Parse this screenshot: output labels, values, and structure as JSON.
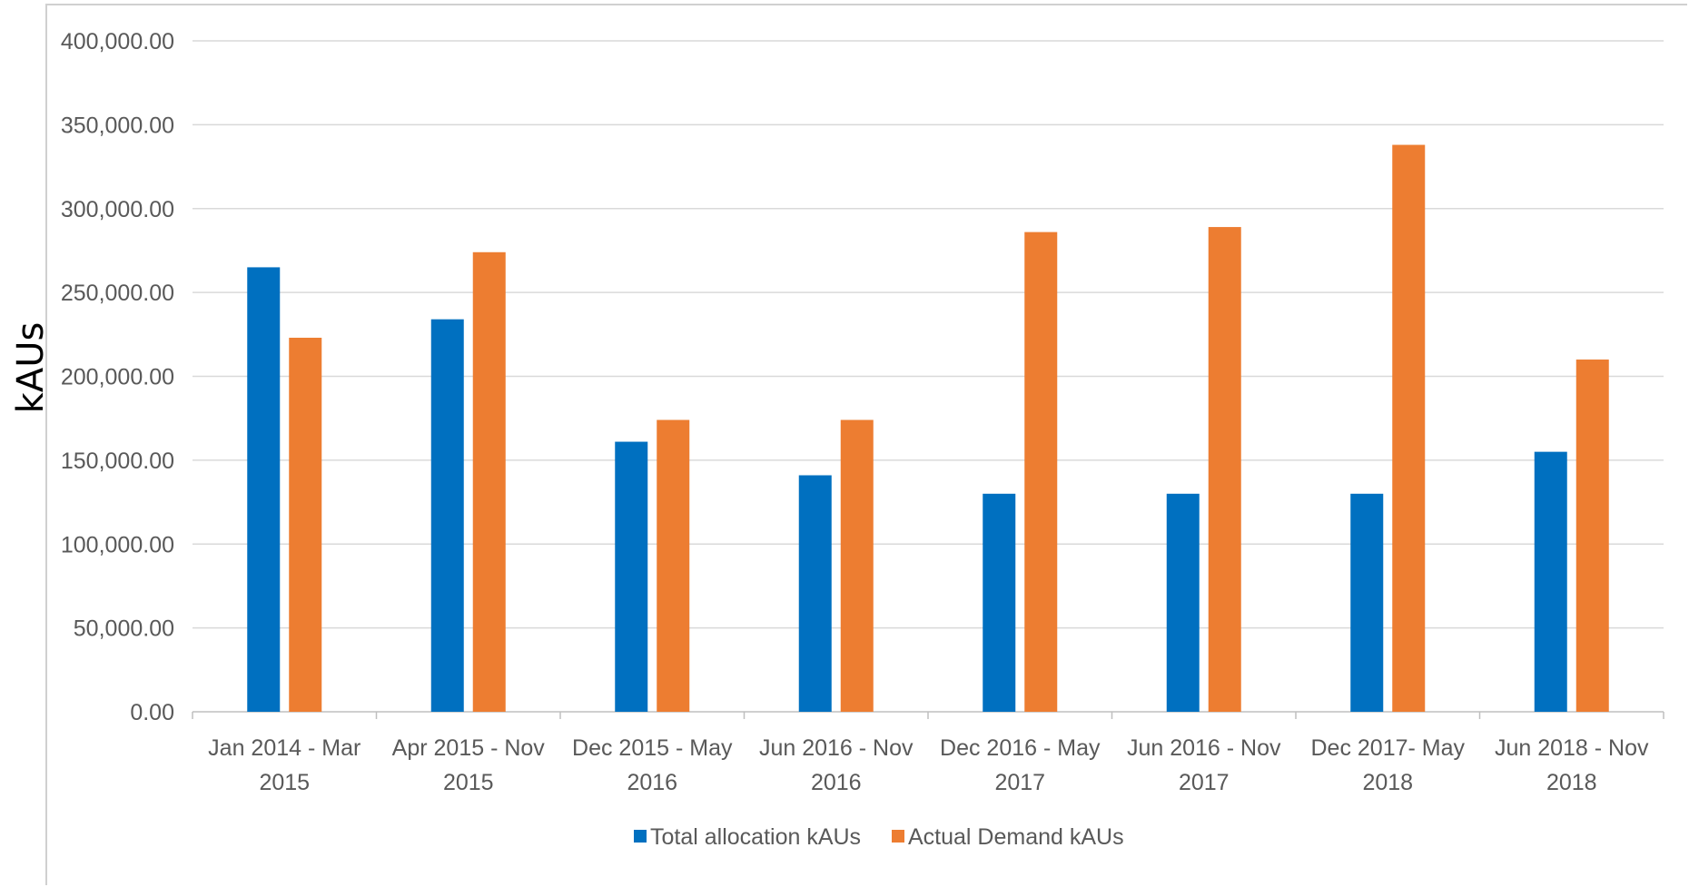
{
  "chart_data": {
    "type": "bar",
    "title": "",
    "xlabel": "",
    "ylabel": "kAUs",
    "ylim": [
      0,
      400000
    ],
    "y_ticks": [
      "0.00",
      "50,000.00",
      "100,000.00",
      "150,000.00",
      "200,000.00",
      "250,000.00",
      "300,000.00",
      "350,000.00",
      "400,000.00"
    ],
    "y_tick_values": [
      0,
      50000,
      100000,
      150000,
      200000,
      250000,
      300000,
      350000,
      400000
    ],
    "grid": true,
    "legend_position": "bottom",
    "categories": [
      [
        "Jan 2014 - Mar",
        "2015"
      ],
      [
        "Apr 2015 - Nov",
        "2015"
      ],
      [
        "Dec 2015 - May",
        "2016"
      ],
      [
        "Jun 2016 - Nov",
        "2016"
      ],
      [
        "Dec 2016 - May",
        "2017"
      ],
      [
        "Jun 2016 - Nov",
        "2017"
      ],
      [
        "Dec 2017- May",
        "2018"
      ],
      [
        "Jun 2018 - Nov",
        "2018"
      ]
    ],
    "series": [
      {
        "name": "Total allocation kAUs",
        "color": "#0070C0",
        "values": [
          265000,
          234000,
          161000,
          141000,
          130000,
          130000,
          130000,
          155000
        ]
      },
      {
        "name": "Actual Demand kAUs",
        "color": "#ED7D31",
        "values": [
          223000,
          274000,
          174000,
          174000,
          286000,
          289000,
          338000,
          210000
        ]
      }
    ]
  }
}
